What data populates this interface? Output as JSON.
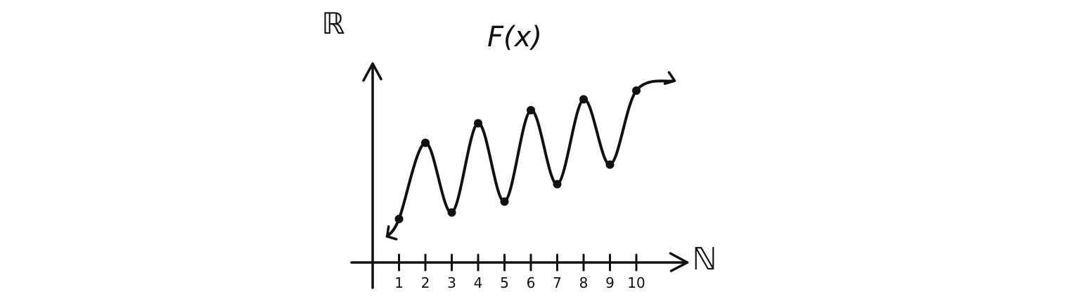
{
  "chart_data": {
    "type": "line",
    "title": "F(x)",
    "xlabel": "ℕ",
    "ylabel": "ℝ",
    "x_ticks": [
      "1",
      "2",
      "3",
      "4",
      "5",
      "6",
      "7",
      "8",
      "9",
      "10"
    ],
    "x": [
      1,
      2,
      3,
      4,
      5,
      6,
      7,
      8,
      9,
      10
    ],
    "values": [
      2.0,
      5.5,
      2.3,
      6.4,
      2.8,
      7.0,
      3.6,
      7.5,
      4.5,
      7.9
    ],
    "xlim": [
      0,
      11.8
    ],
    "ylim": [
      0,
      9.3
    ],
    "grid": false,
    "points_marked": true,
    "extends_left": true,
    "extends_right": true
  },
  "colors": {
    "ink": "#111111",
    "background": "#ffffff"
  }
}
